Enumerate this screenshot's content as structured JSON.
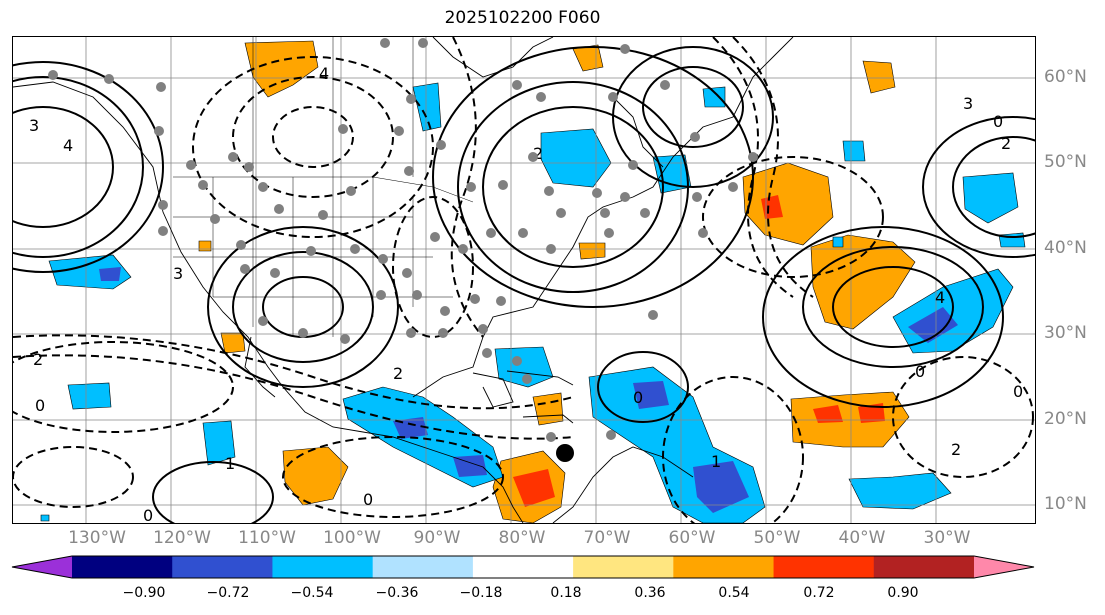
{
  "title": "2025102200 F060",
  "latitude_labels": [
    "60°N",
    "50°N",
    "40°N",
    "30°N",
    "20°N",
    "10°N"
  ],
  "longitude_labels": [
    "130°W",
    "120°W",
    "110°W",
    "100°W",
    "90°W",
    "80°W",
    "70°W",
    "60°W",
    "50°W",
    "40°W",
    "30°W"
  ],
  "contour_labels": [
    "0",
    "1",
    "2",
    "3",
    "4"
  ],
  "colorbar": {
    "ticks": [
      "−0.90",
      "−0.72",
      "−0.54",
      "−0.36",
      "−0.18",
      "0.18",
      "0.36",
      "0.54",
      "0.72",
      "0.90"
    ],
    "colors": [
      "#9b30d9",
      "#000080",
      "#3050d0",
      "#00bfff",
      "#b0e2ff",
      "#ffffff",
      "#ffe680",
      "#ffa500",
      "#ff3300",
      "#b22222",
      "#ff88aa"
    ],
    "extend": "both"
  },
  "map": {
    "projection": "equirectangular",
    "lon_range": [
      "~138°W",
      "~20°W"
    ],
    "lat_range": [
      "~8°N",
      "~65°N"
    ],
    "gridlines": true,
    "contours": "black, solid positive, dashed negative",
    "markers": "grey circles; one large black circle near 75°W 16°N"
  }
}
